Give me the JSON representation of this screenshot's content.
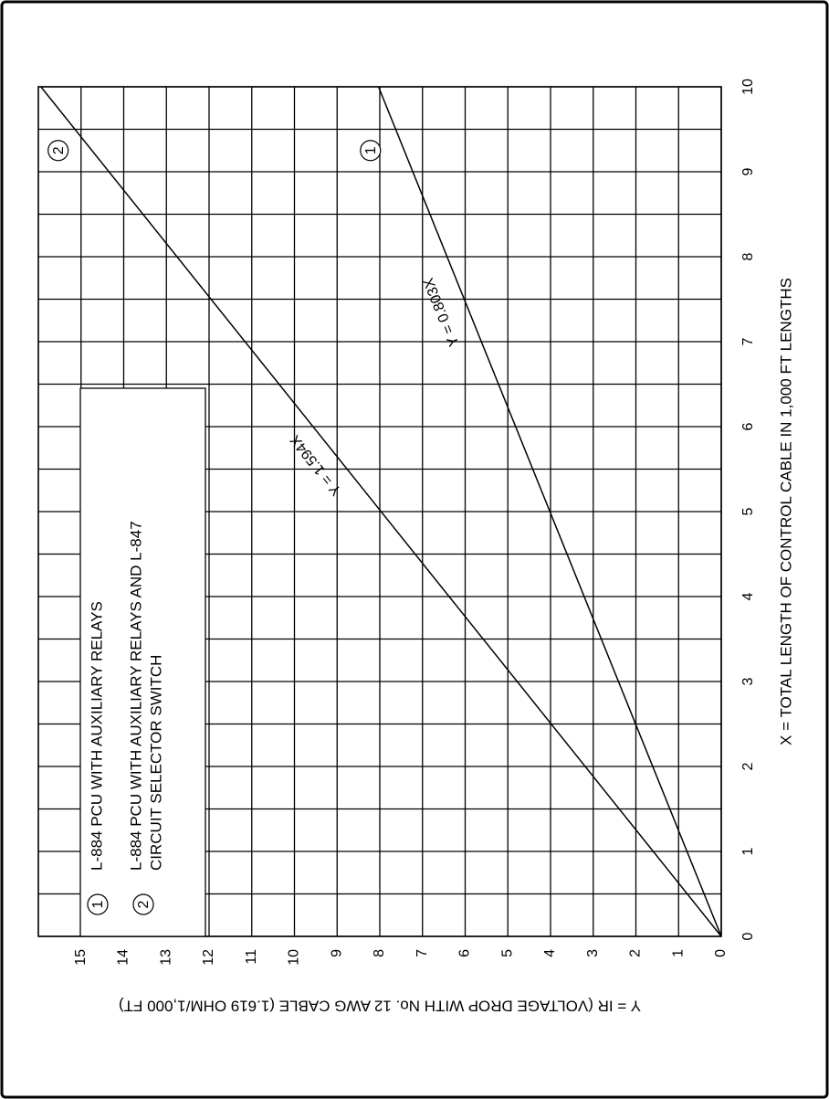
{
  "chart_data": {
    "type": "line",
    "xlabel": "X = TOTAL LENGTH OF CONTROL CABLE IN 1,000 FT LENGTHS",
    "ylabel": "Y = IR (VOLTAGE DROP WITH No. 12 AWG CABLE (1.619 OHM/1,000 FT)",
    "x": [
      0,
      10
    ],
    "series": [
      {
        "name": "L-884 PCU WITH AUXILIARY RELAYS",
        "marker": "1",
        "label": "Y = 0.803X",
        "color": "#000000",
        "values": [
          0,
          8.03
        ]
      },
      {
        "name": [
          "L-884 PCU WITH AUXILIARY RELAYS AND L-847",
          "CIRCUIT SELECTOR SWITCH"
        ],
        "marker": "2",
        "label": "Y = 1.594X",
        "color": "#000000",
        "values": [
          0,
          15.94
        ]
      }
    ],
    "xlim": [
      0,
      10
    ],
    "xticks": [
      0,
      1,
      2,
      3,
      4,
      5,
      6,
      7,
      8,
      9,
      10
    ],
    "ylim": [
      0,
      16
    ],
    "yticks": [
      0,
      1,
      2,
      3,
      4,
      5,
      6,
      7,
      8,
      9,
      10,
      11,
      12,
      13,
      14,
      15
    ],
    "grid": true,
    "legend": "upper-left"
  }
}
